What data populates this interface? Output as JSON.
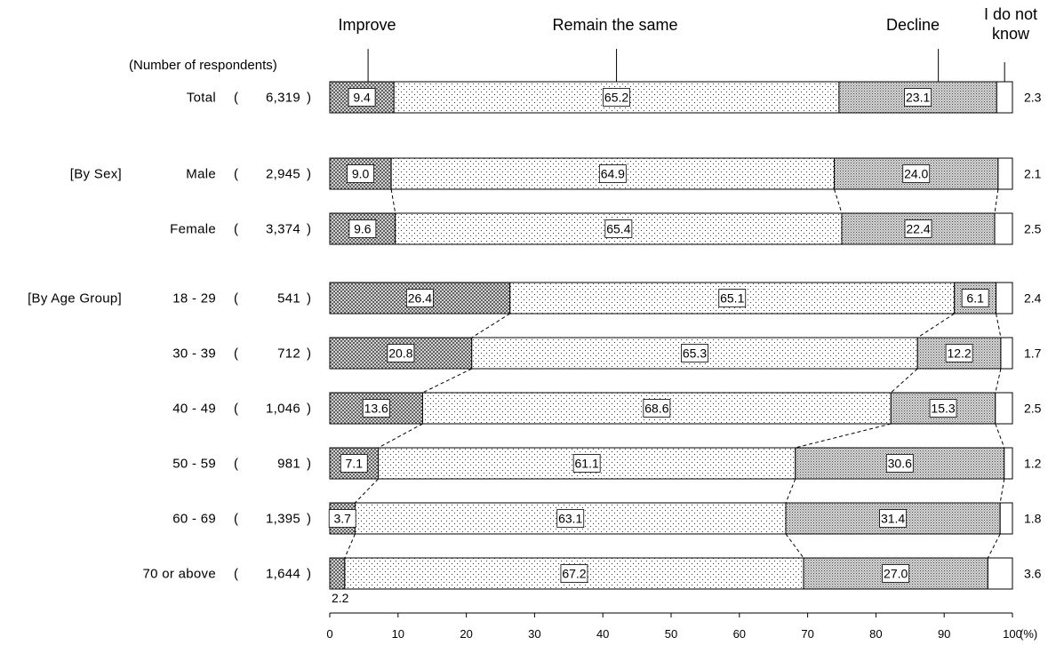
{
  "chart_data": {
    "type": "bar",
    "stacked": true,
    "orientation": "horizontal",
    "respondents_header": "(Number of respondents)",
    "group_labels": [
      "[By Sex]",
      "[By Age Group]"
    ],
    "series": [
      {
        "name": "Improve",
        "pattern": "crosshatch",
        "legend_lines": [
          "Improve"
        ]
      },
      {
        "name": "Remain the same",
        "pattern": "light-dots",
        "legend_lines": [
          "Remain the same"
        ]
      },
      {
        "name": "Decline",
        "pattern": "dense-dots",
        "legend_lines": [
          "Decline"
        ]
      },
      {
        "name": "I do not know",
        "pattern": "blank",
        "legend_lines": [
          "I do not",
          "know"
        ]
      }
    ],
    "categories": [
      {
        "label": "Total",
        "n": "6,319",
        "values": [
          9.4,
          65.2,
          23.1,
          2.3
        ],
        "group": ""
      },
      {
        "label": "Male",
        "n": "2,945",
        "values": [
          9.0,
          64.9,
          24.0,
          2.1
        ],
        "group": "[By Sex]"
      },
      {
        "label": "Female",
        "n": "3,374",
        "values": [
          9.6,
          65.4,
          22.4,
          2.5
        ],
        "group": ""
      },
      {
        "label": "18 - 29",
        "n": "541",
        "values": [
          26.4,
          65.1,
          6.1,
          2.4
        ],
        "group": "[By Age Group]"
      },
      {
        "label": "30 - 39",
        "n": "712",
        "values": [
          20.8,
          65.3,
          12.2,
          1.7
        ],
        "group": ""
      },
      {
        "label": "40 - 49",
        "n": "1,046",
        "values": [
          13.6,
          68.6,
          15.3,
          2.5
        ],
        "group": ""
      },
      {
        "label": "50 - 59",
        "n": "981",
        "values": [
          7.1,
          61.1,
          30.6,
          1.2
        ],
        "group": ""
      },
      {
        "label": "60 - 69",
        "n": "1,395",
        "values": [
          3.7,
          63.1,
          31.4,
          1.8
        ],
        "group": ""
      },
      {
        "label": "70 or above",
        "n": "1,644",
        "values": [
          2.2,
          67.2,
          27.0,
          3.6
        ],
        "group": ""
      }
    ],
    "x_ticks": [
      "0",
      "10",
      "20",
      "30",
      "40",
      "50",
      "60",
      "70",
      "80",
      "90",
      "100"
    ],
    "x_unit": "(%)",
    "xlim": [
      0,
      100
    ],
    "grid": false
  }
}
